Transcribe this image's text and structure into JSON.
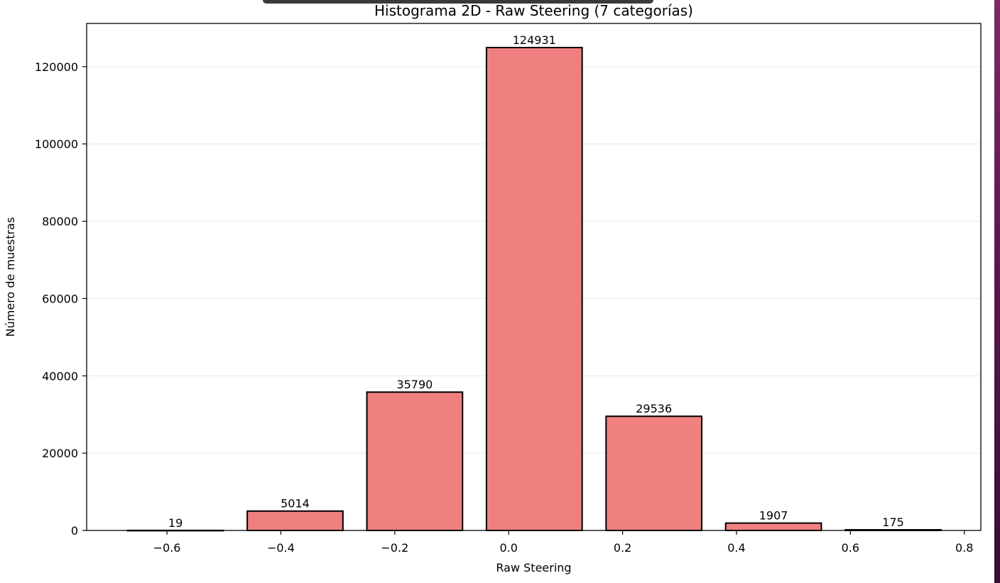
{
  "window": {
    "top_bar": "",
    "desktop_strip_color": "#5a1a52"
  },
  "chart_data": {
    "type": "bar",
    "title": "Histograma 2D - Raw Steering (7 categorías)",
    "xlabel": "Raw Steering",
    "ylabel": "Número de muestras",
    "categories": [
      -0.585,
      -0.375,
      -0.165,
      0.045,
      0.255,
      0.465,
      0.675
    ],
    "bar_width": 0.168,
    "values": [
      19,
      5014,
      35790,
      124931,
      29536,
      1907,
      175
    ],
    "bar_labels": [
      "19",
      "5014",
      "35790",
      "124931",
      "29536",
      "1907",
      "175"
    ],
    "xlim": [
      -0.741,
      0.829
    ],
    "ylim": [
      0,
      131178
    ],
    "xticks": [
      -0.6,
      -0.4,
      -0.2,
      0.0,
      0.2,
      0.4,
      0.6,
      0.8
    ],
    "xtick_labels": [
      "−0.6",
      "−0.4",
      "−0.2",
      "0.0",
      "0.2",
      "0.4",
      "0.6",
      "0.8"
    ],
    "yticks": [
      0,
      20000,
      40000,
      60000,
      80000,
      100000,
      120000
    ],
    "ytick_labels": [
      "0",
      "20000",
      "40000",
      "60000",
      "80000",
      "100000",
      "120000"
    ],
    "grid": {
      "axis": "y",
      "color": "#e6e6e6"
    },
    "bar_color": "#f08080",
    "bar_edge_color": "#000000",
    "legend": null
  }
}
